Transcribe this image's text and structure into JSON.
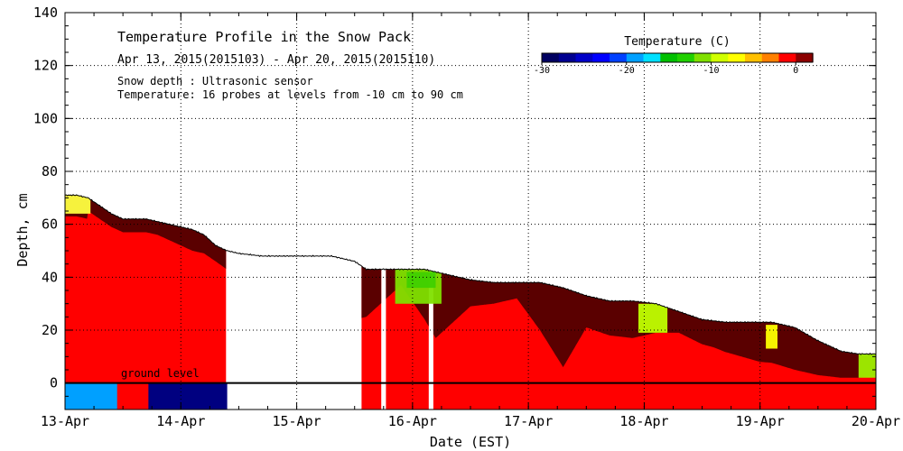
{
  "chart_data": {
    "type": "heatmap",
    "title": "Temperature Profile in the Snow Pack",
    "subtitle": "Apr 13, 2015(2015103) - Apr 20, 2015(2015110)",
    "annotations": [
      "Snow depth : Ultrasonic sensor",
      "Temperature: 16 probes at levels from -10 cm to 90 cm"
    ],
    "ground_label": "ground level",
    "xlabel": "Date (EST)",
    "ylabel": "Depth, cm",
    "x_ticks": [
      "13-Apr",
      "14-Apr",
      "15-Apr",
      "16-Apr",
      "17-Apr",
      "18-Apr",
      "19-Apr",
      "20-Apr"
    ],
    "xlim_days": [
      0,
      7
    ],
    "y_ticks": [
      0,
      20,
      40,
      60,
      80,
      100,
      120,
      140
    ],
    "ylim": [
      -10,
      140
    ],
    "grid": true,
    "legend": {
      "title": "Temperature (C)",
      "placement": "top-right",
      "range": [
        -30,
        2
      ],
      "ticks": [
        -30,
        -20,
        -10,
        0
      ],
      "tick_labels": [
        "-30",
        "-20",
        "-10",
        "0"
      ],
      "colors": [
        "#000060",
        "#000090",
        "#0000c8",
        "#0000ff",
        "#0040ff",
        "#00a0ff",
        "#00e0ff",
        "#00c000",
        "#20d000",
        "#80e000",
        "#d0ff00",
        "#ffff00",
        "#ffc000",
        "#ff8000",
        "#ff0000",
        "#8b0000"
      ]
    },
    "colors": {
      "warm": "#ff0000",
      "very_warm": "#5a0000",
      "deep_cold": "#000080",
      "mid_cold": "#00e060",
      "gap": "#ffffff",
      "depth_line": "#000000"
    },
    "snow_depth_cm": [
      [
        0.0,
        71
      ],
      [
        0.1,
        71
      ],
      [
        0.2,
        70
      ],
      [
        0.3,
        67
      ],
      [
        0.4,
        64
      ],
      [
        0.5,
        62
      ],
      [
        0.6,
        62
      ],
      [
        0.7,
        62
      ],
      [
        0.8,
        61
      ],
      [
        0.9,
        60
      ],
      [
        1.0,
        59
      ],
      [
        1.1,
        58
      ],
      [
        1.2,
        56
      ],
      [
        1.3,
        52
      ],
      [
        1.4,
        50
      ],
      [
        1.5,
        49
      ],
      [
        1.7,
        48
      ],
      [
        1.9,
        48
      ],
      [
        2.1,
        48
      ],
      [
        2.3,
        48
      ],
      [
        2.4,
        47
      ],
      [
        2.5,
        46
      ],
      [
        2.6,
        43
      ],
      [
        2.7,
        43
      ],
      [
        2.8,
        43
      ],
      [
        2.9,
        43
      ],
      [
        3.0,
        43
      ],
      [
        3.1,
        43
      ],
      [
        3.2,
        42
      ],
      [
        3.3,
        41
      ],
      [
        3.5,
        39
      ],
      [
        3.7,
        38
      ],
      [
        3.9,
        38
      ],
      [
        4.1,
        38
      ],
      [
        4.3,
        36
      ],
      [
        4.5,
        33
      ],
      [
        4.7,
        31
      ],
      [
        4.9,
        31
      ],
      [
        5.1,
        30
      ],
      [
        5.3,
        27
      ],
      [
        5.5,
        24
      ],
      [
        5.7,
        23
      ],
      [
        5.9,
        23
      ],
      [
        6.1,
        23
      ],
      [
        6.3,
        21
      ],
      [
        6.5,
        16
      ],
      [
        6.7,
        12
      ],
      [
        6.85,
        11
      ],
      [
        7.0,
        11
      ]
    ],
    "data_gaps_days": [
      [
        1.4,
        2.55
      ],
      [
        2.73,
        2.76
      ],
      [
        3.14,
        3.17
      ]
    ],
    "warm_top_layer": [
      [
        0.2,
        5
      ],
      [
        0.5,
        5
      ],
      [
        0.8,
        5
      ],
      [
        1.1,
        8
      ],
      [
        1.3,
        6
      ],
      [
        2.55,
        20
      ],
      [
        2.9,
        6
      ],
      [
        3.2,
        25
      ],
      [
        3.5,
        10
      ],
      [
        3.9,
        6
      ],
      [
        4.3,
        30
      ],
      [
        4.5,
        12
      ],
      [
        4.9,
        14
      ],
      [
        5.3,
        8
      ],
      [
        5.6,
        10
      ],
      [
        6.0,
        15
      ],
      [
        6.3,
        16
      ],
      [
        6.7,
        10
      ],
      [
        7.0,
        8
      ]
    ],
    "cold_patches": [
      {
        "label": "Apr 13 surface",
        "start": 0.0,
        "end": 0.22,
        "bottom": 64,
        "top": 71,
        "color": "#ffff40"
      },
      {
        "label": "Apr 16 surface",
        "start": 2.85,
        "end": 3.25,
        "bottom": 30,
        "top": 43,
        "color": "#80e000"
      },
      {
        "label": "Apr 16 core",
        "start": 2.95,
        "end": 3.2,
        "bottom": 36,
        "top": 42,
        "color": "#40d000"
      },
      {
        "label": "Apr 18 surface",
        "start": 4.95,
        "end": 5.2,
        "bottom": 19,
        "top": 30,
        "color": "#c0ff00"
      },
      {
        "label": "Apr 19 surface",
        "start": 6.05,
        "end": 6.15,
        "bottom": 13,
        "top": 22,
        "color": "#ffff00"
      },
      {
        "label": "Apr 20 surface",
        "start": 6.85,
        "end": 7.0,
        "bottom": 2,
        "top": 11,
        "color": "#a0f000"
      }
    ],
    "ground_cold_patches": [
      {
        "label": "Apr 13 ground",
        "start": 0.0,
        "end": 0.45,
        "color": "#00a0ff"
      },
      {
        "label": "Apr 14 ground",
        "start": 0.72,
        "end": 1.4,
        "color": "#000080"
      }
    ]
  }
}
